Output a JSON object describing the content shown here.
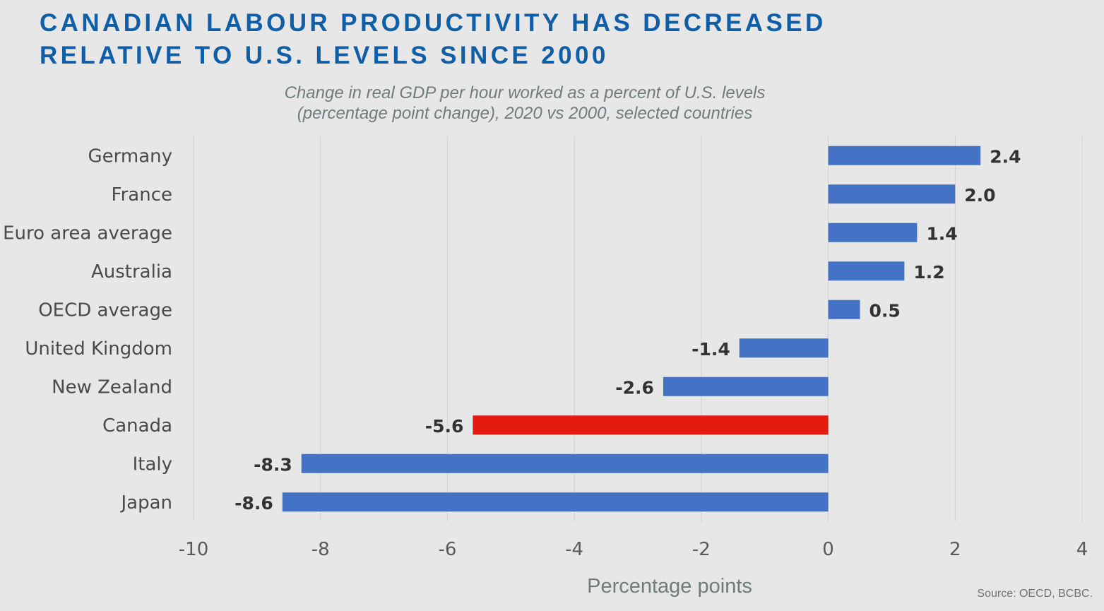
{
  "title_line1": "CANADIAN LABOUR PRODUCTIVITY HAS DECREASED",
  "title_line2": "RELATIVE TO U.S. LEVELS SINCE 2000",
  "subtitle_line1": "Change in real GDP per hour worked as a percent of U.S. levels",
  "subtitle_line2": "(percentage point change), 2020 vs 2000, selected countries",
  "source": "Source: OECD, BCBC.",
  "chart_data": {
    "type": "bar",
    "orientation": "horizontal",
    "categories": [
      "Germany",
      "France",
      "Euro area average",
      "Australia",
      "OECD average",
      "United Kingdom",
      "New Zealand",
      "Canada",
      "Italy",
      "Japan"
    ],
    "values": [
      2.4,
      2.0,
      1.4,
      1.2,
      0.5,
      -1.4,
      -2.6,
      -5.6,
      -8.3,
      -8.6
    ],
    "data_labels": [
      "2.4",
      "2.0",
      "1.4",
      "1.2",
      "0.5",
      "-1.4",
      "-2.6",
      "-5.6",
      "-8.3",
      "-8.6"
    ],
    "highlight": "Canada",
    "colors": {
      "bar": "#4472c4",
      "highlight": "#e31b0c",
      "grid": "#d0d0d0"
    },
    "xlabel": "Percentage points",
    "xlim": [
      -10,
      4
    ],
    "xticks": [
      -10,
      -8,
      -6,
      -4,
      -2,
      0,
      2,
      4
    ],
    "xtick_labels": [
      "-10",
      "-8",
      "-6",
      "-4",
      "-2",
      "0",
      "2",
      "4"
    ],
    "grid": "vertical",
    "legend": "none"
  }
}
